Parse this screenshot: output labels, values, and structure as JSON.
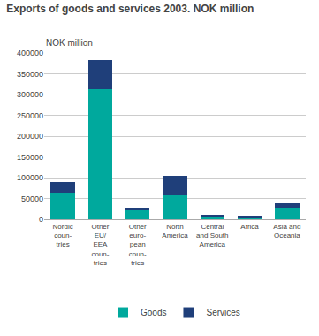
{
  "chart_data": {
    "type": "bar",
    "stacked": true,
    "title": "Exports of goods and services 2003. NOK million",
    "ylabel": "NOK million",
    "categories": [
      "Nordic\ncoun-\ntries",
      "Other\nEU/\nEEA\ncoun-\ntries",
      "Other\neuro-\npean\ncoun-\ntries",
      "North\nAmerica",
      "Central\nand South\nAmerica",
      "Africa",
      "Asia and\nOceania"
    ],
    "series": [
      {
        "name": "Goods",
        "color": "#00A99D",
        "values": [
          63000,
          312000,
          22000,
          58000,
          8000,
          5000,
          27000
        ]
      },
      {
        "name": "Services",
        "color": "#1F3F7A",
        "values": [
          26000,
          70000,
          6000,
          46000,
          3000,
          2000,
          12000
        ]
      }
    ],
    "ylim": [
      0,
      400000
    ],
    "yticks": [
      0,
      50000,
      100000,
      150000,
      200000,
      250000,
      300000,
      350000,
      400000
    ],
    "grid": true,
    "legend": "bottom"
  }
}
